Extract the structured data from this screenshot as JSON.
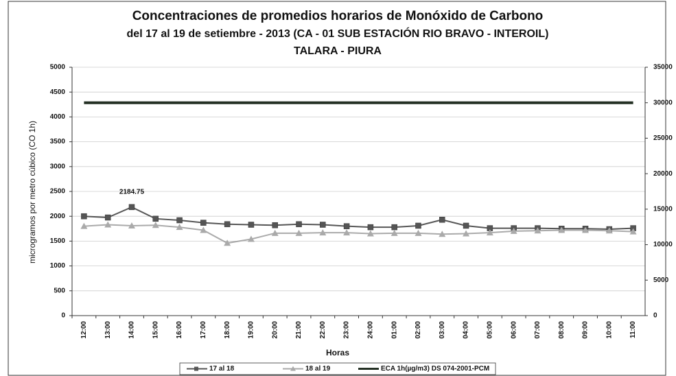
{
  "chart_data": {
    "type": "line",
    "title": "Concentraciones de promedios horarios de Monóxido de Carbono",
    "subtitle": [
      "del 17 al 19 de setiembre - 2013 (CA - 01 SUB ESTACIÓN RIO BRAVO - INTEROIL)",
      "TALARA - PIURA"
    ],
    "x_label": "Horas",
    "y_label": "microgramos por metro cúbico (CO 1h)",
    "categories": [
      "12:00",
      "13:00",
      "14:00",
      "15:00",
      "16:00",
      "17:00",
      "18:00",
      "19:00",
      "20:00",
      "21:00",
      "22:00",
      "23:00",
      "24:00",
      "01:00",
      "02:00",
      "03:00",
      "04:00",
      "05:00",
      "06:00",
      "07:00",
      "08:00",
      "09:00",
      "10:00",
      "11:00"
    ],
    "series": [
      {
        "name": "17 al 18",
        "color": "#555555",
        "marker": "square",
        "values": [
          2000,
          1975,
          2184.75,
          1950,
          1920,
          1870,
          1840,
          1830,
          1820,
          1840,
          1830,
          1800,
          1780,
          1780,
          1810,
          1930,
          1810,
          1760,
          1760,
          1760,
          1750,
          1750,
          1740,
          1760
        ],
        "data_labels": [
          2
        ]
      },
      {
        "name": "18 al 19",
        "color": "#aaaaaa",
        "marker": "triangle",
        "values": [
          1800,
          1830,
          1810,
          1820,
          1780,
          1720,
          1460,
          1540,
          1660,
          1660,
          1670,
          1670,
          1650,
          1660,
          1660,
          1640,
          1650,
          1670,
          1700,
          1710,
          1720,
          1720,
          1710,
          1690
        ]
      },
      {
        "name": "ECA 1h(µg/m3) DS 074-2001-PCM",
        "color": "#243024",
        "marker": "none",
        "axis": "y2",
        "values": [
          30000,
          30000,
          30000,
          30000,
          30000,
          30000,
          30000,
          30000,
          30000,
          30000,
          30000,
          30000,
          30000,
          30000,
          30000,
          30000,
          30000,
          30000,
          30000,
          30000,
          30000,
          30000,
          30000,
          30000
        ]
      }
    ],
    "ylim": [
      0,
      5000
    ],
    "yticks": [
      0,
      500,
      1000,
      1500,
      2000,
      2500,
      3000,
      3500,
      4000,
      4500,
      5000
    ],
    "y2lim": [
      0,
      35000
    ],
    "y2ticks": [
      0,
      5000,
      10000,
      15000,
      20000,
      25000,
      30000,
      35000
    ],
    "grid": true,
    "legend": "bottom"
  }
}
